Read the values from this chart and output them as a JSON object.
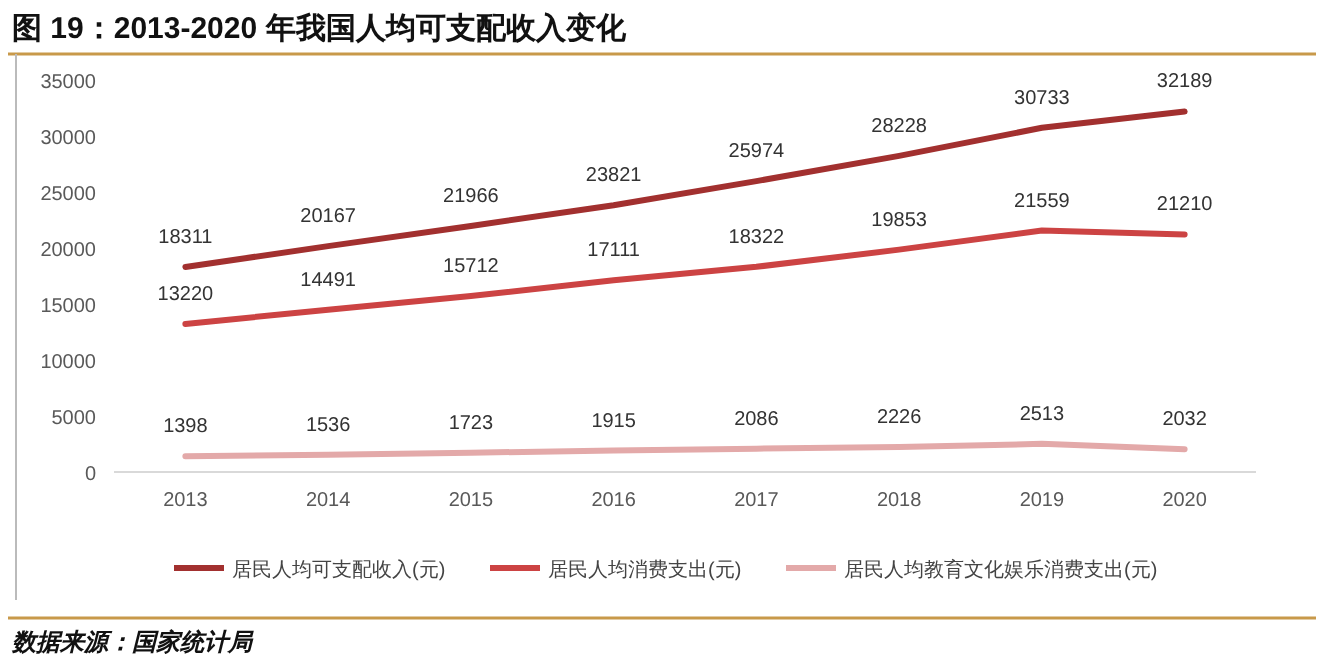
{
  "chart_data": {
    "type": "line",
    "title": "图 19：2013-2020 年我国人均可支配收入变化",
    "categories": [
      "2013",
      "2014",
      "2015",
      "2016",
      "2017",
      "2018",
      "2019",
      "2020"
    ],
    "series": [
      {
        "name": "居民人均可支配收入(元)",
        "color": "#a2302f",
        "values": [
          18311,
          20167,
          21966,
          23821,
          25974,
          28228,
          30733,
          32189
        ]
      },
      {
        "name": "居民人均消费支出(元)",
        "color": "#cc4343",
        "values": [
          13220,
          14491,
          15712,
          17111,
          18322,
          19853,
          21559,
          21210
        ]
      },
      {
        "name": "居民人均教育文化娱乐消费支出(元)",
        "color": "#e3a9a9",
        "values": [
          1398,
          1536,
          1723,
          1915,
          2086,
          2226,
          2513,
          2032
        ]
      }
    ],
    "ylim": [
      0,
      35000
    ],
    "yticks": [
      0,
      5000,
      10000,
      15000,
      20000,
      25000,
      30000,
      35000
    ],
    "data_labels": true,
    "legend": "bottom",
    "annotations": [
      "数据来源：国家统计局"
    ]
  }
}
